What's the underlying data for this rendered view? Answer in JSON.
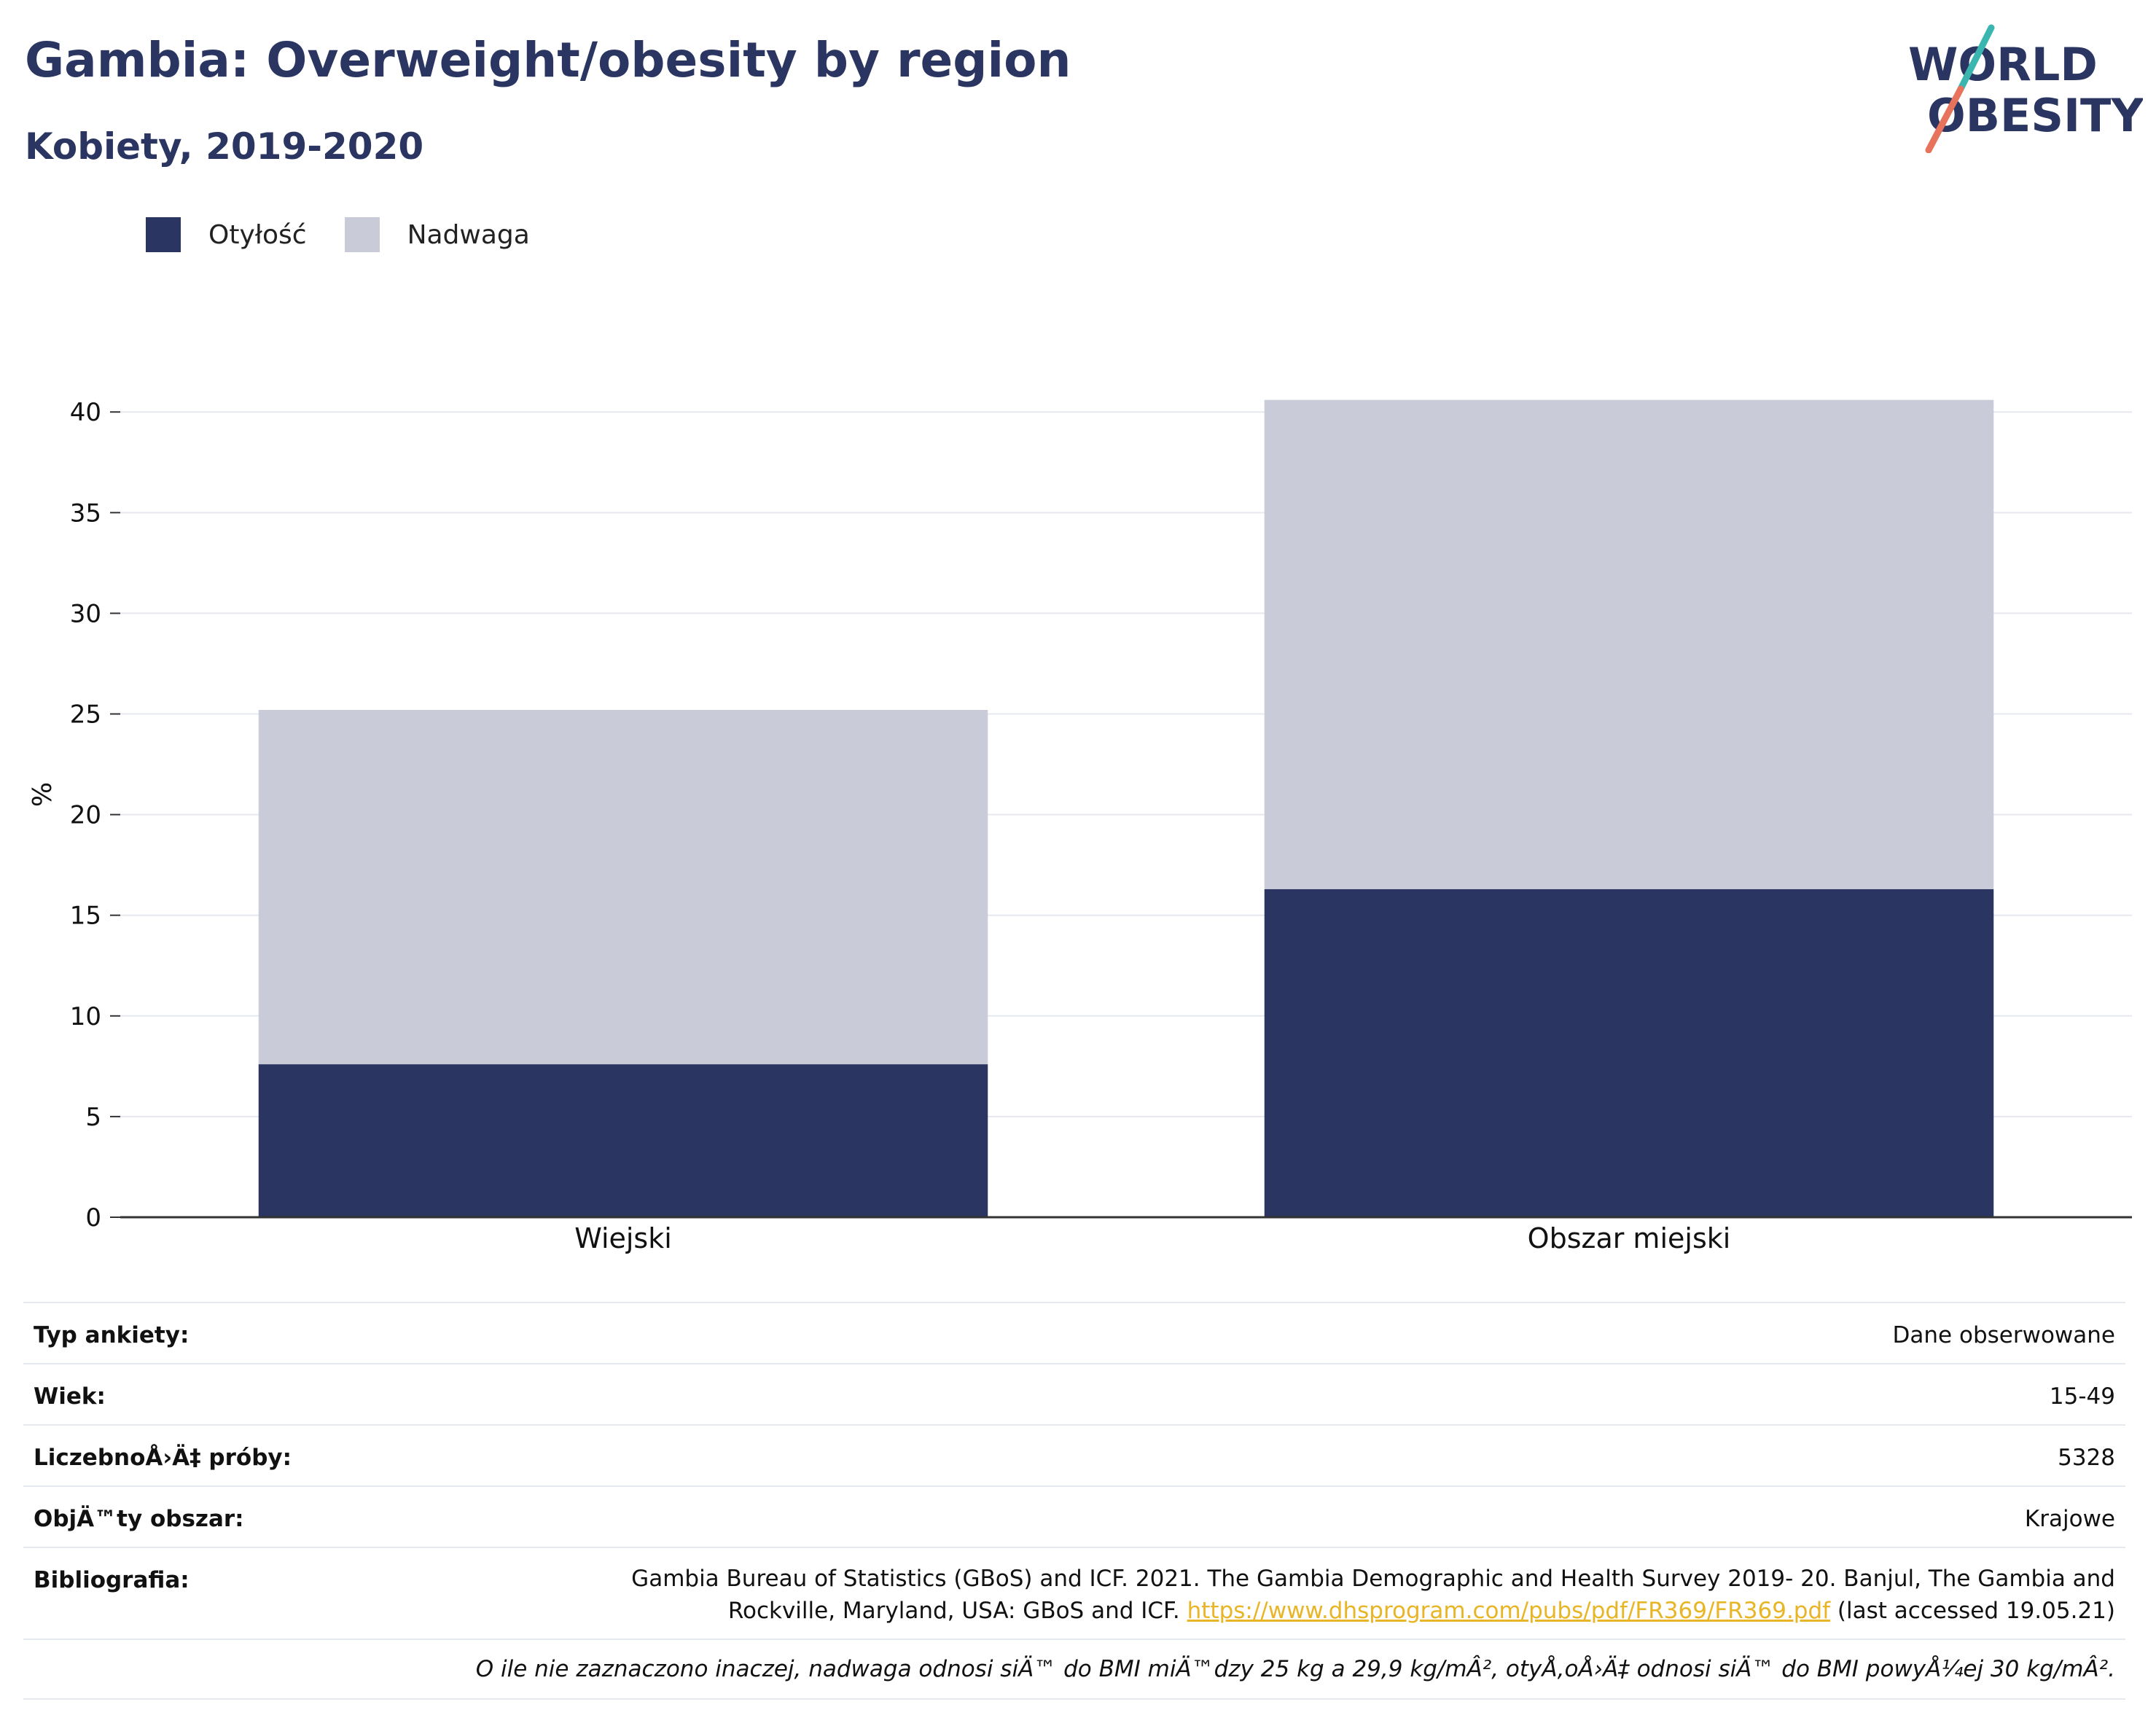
{
  "header": {
    "title": "Gambia: Overweight/obesity by region",
    "subtitle": "Kobiety, 2019-2020",
    "logo_text_line1": "WORLD",
    "logo_text_line2": "OBESITY"
  },
  "colors": {
    "obesity": "#2a3661",
    "overweight": "#c9ccd8",
    "title": "#2a3661",
    "logo_teal": "#3ab5b0",
    "logo_coral": "#e8735c",
    "link": "#e8b526"
  },
  "chart_data": {
    "type": "bar",
    "stacked": true,
    "categories": [
      "Wiejski",
      "Obszar miejski"
    ],
    "series": [
      {
        "name": "Otyłość",
        "values": [
          7.6,
          16.3
        ]
      },
      {
        "name": "Nadwaga",
        "values": [
          17.6,
          24.3
        ]
      }
    ],
    "ylabel": "%",
    "ylim": [
      0,
      42
    ],
    "yticks": [
      0,
      5,
      10,
      15,
      20,
      25,
      30,
      35,
      40
    ],
    "grid": true,
    "legend_position": "top-left"
  },
  "info": {
    "rows": [
      {
        "label": "Typ ankiety:",
        "value": "Dane obserwowane"
      },
      {
        "label": "Wiek:",
        "value": "15-49"
      },
      {
        "label": "LiczebnoÅ›Ä‡ próby:",
        "value": "5328"
      },
      {
        "label": "ObjÄ™ty obszar:",
        "value": "Krajowe"
      }
    ],
    "bibliography_label": "Bibliografia:",
    "bibliography_line1": "Gambia Bureau of Statistics (GBoS) and ICF. 2021. The Gambia Demographic and Health Survey 2019- 20. Banjul, The Gambia and",
    "bibliography_line2_pre": "Rockville, Maryland, USA: GBoS and ICF. ",
    "bibliography_link": "https://www.dhsprogram.com/pubs/pdf/FR369/FR369.pdf",
    "bibliography_line2_post": " (last accessed 19.05.21)",
    "note": "O ile nie zaznaczono inaczej, nadwaga odnosi siÄ™ do BMI miÄ™dzy 25 kg a 29,9 kg/mÂ², otyÅ‚oÅ›Ä‡ odnosi siÄ™ do BMI powyÅ¼ej 30 kg/mÂ²."
  }
}
